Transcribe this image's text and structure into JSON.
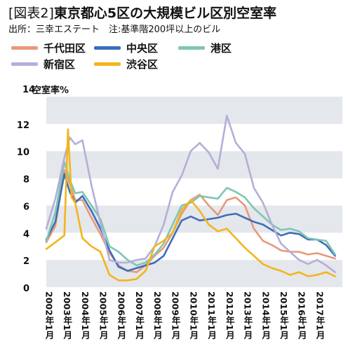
{
  "title_tag": "[図表2]",
  "title_text": "東京都心5区の大規模ビル区別空室率",
  "source": "出所：三幸エステート　注:基準階200坪以上のビル",
  "chart_data": {
    "type": "line",
    "ylabel": "空室率%",
    "ylim": [
      0,
      14
    ],
    "yticks": [
      0,
      2,
      4,
      6,
      8,
      10,
      12,
      14
    ],
    "xlim": [
      2002.0,
      2018.4
    ],
    "x_tick_labels": [
      "2002年1月",
      "2003年1月",
      "2004年1月",
      "2005年1月",
      "2006年1月",
      "2007年1月",
      "2008年1月",
      "2009年1月",
      "2010年1月",
      "2011年1月",
      "2012年1月",
      "2013年1月",
      "2014年1月",
      "2015年1月",
      "2016年1月",
      "2017年1月"
    ],
    "x_tick_values": [
      2002,
      2003,
      2004,
      2005,
      2006,
      2007,
      2008,
      2009,
      2010,
      2011,
      2012,
      2013,
      2014,
      2015,
      2016,
      2017
    ],
    "series": [
      {
        "name": "千代田区",
        "color": "#e8997a",
        "points": [
          [
            2002.0,
            3.3
          ],
          [
            2002.5,
            4.5
          ],
          [
            2003.0,
            8.6
          ],
          [
            2003.3,
            7.6
          ],
          [
            2003.6,
            6.4
          ],
          [
            2004.0,
            6.4
          ],
          [
            2004.5,
            5.1
          ],
          [
            2005.0,
            3.9
          ],
          [
            2005.5,
            2.5
          ],
          [
            2006.0,
            1.6
          ],
          [
            2006.5,
            1.2
          ],
          [
            2007.0,
            1.1
          ],
          [
            2007.5,
            1.6
          ],
          [
            2008.0,
            2.3
          ],
          [
            2008.5,
            2.9
          ],
          [
            2009.0,
            4.0
          ],
          [
            2009.5,
            5.4
          ],
          [
            2010.0,
            6.4
          ],
          [
            2010.5,
            6.8
          ],
          [
            2011.0,
            6.0
          ],
          [
            2011.5,
            5.3
          ],
          [
            2012.0,
            6.4
          ],
          [
            2012.5,
            6.6
          ],
          [
            2013.0,
            6.0
          ],
          [
            2013.5,
            4.3
          ],
          [
            2014.0,
            3.4
          ],
          [
            2014.5,
            3.1
          ],
          [
            2015.0,
            2.7
          ],
          [
            2015.5,
            2.6
          ],
          [
            2016.0,
            2.6
          ],
          [
            2016.5,
            2.4
          ],
          [
            2017.0,
            2.5
          ],
          [
            2017.5,
            2.3
          ],
          [
            2018.0,
            2.1
          ]
        ]
      },
      {
        "name": "中央区",
        "color": "#3b6fba",
        "points": [
          [
            2002.0,
            3.5
          ],
          [
            2002.5,
            4.8
          ],
          [
            2003.0,
            8.3
          ],
          [
            2003.3,
            7.0
          ],
          [
            2003.6,
            6.2
          ],
          [
            2004.0,
            6.7
          ],
          [
            2004.5,
            5.6
          ],
          [
            2005.0,
            4.3
          ],
          [
            2005.5,
            2.7
          ],
          [
            2006.0,
            1.5
          ],
          [
            2006.5,
            1.2
          ],
          [
            2007.0,
            1.4
          ],
          [
            2007.5,
            1.6
          ],
          [
            2008.0,
            1.8
          ],
          [
            2008.5,
            2.3
          ],
          [
            2009.0,
            3.6
          ],
          [
            2009.5,
            4.9
          ],
          [
            2010.0,
            5.2
          ],
          [
            2010.5,
            4.9
          ],
          [
            2011.0,
            5.0
          ],
          [
            2011.5,
            5.1
          ],
          [
            2012.0,
            5.3
          ],
          [
            2012.5,
            5.4
          ],
          [
            2013.0,
            5.1
          ],
          [
            2013.5,
            4.8
          ],
          [
            2014.0,
            4.6
          ],
          [
            2014.5,
            4.2
          ],
          [
            2015.0,
            3.8
          ],
          [
            2015.5,
            4.0
          ],
          [
            2016.0,
            3.9
          ],
          [
            2016.5,
            3.5
          ],
          [
            2017.0,
            3.5
          ],
          [
            2017.5,
            3.1
          ],
          [
            2018.0,
            2.3
          ]
        ]
      },
      {
        "name": "港区",
        "color": "#7fc6b4",
        "points": [
          [
            2002.0,
            3.4
          ],
          [
            2002.5,
            5.5
          ],
          [
            2003.0,
            9.2
          ],
          [
            2003.3,
            7.9
          ],
          [
            2003.6,
            6.9
          ],
          [
            2004.0,
            7.0
          ],
          [
            2004.5,
            6.0
          ],
          [
            2005.0,
            5.0
          ],
          [
            2005.5,
            3.0
          ],
          [
            2006.0,
            2.6
          ],
          [
            2006.5,
            2.0
          ],
          [
            2007.0,
            1.6
          ],
          [
            2007.5,
            1.8
          ],
          [
            2008.0,
            2.4
          ],
          [
            2008.5,
            3.2
          ],
          [
            2009.0,
            4.6
          ],
          [
            2009.5,
            6.0
          ],
          [
            2010.0,
            6.2
          ],
          [
            2010.5,
            6.7
          ],
          [
            2011.0,
            6.6
          ],
          [
            2011.5,
            6.5
          ],
          [
            2012.0,
            7.3
          ],
          [
            2012.5,
            7.0
          ],
          [
            2013.0,
            6.6
          ],
          [
            2013.5,
            5.8
          ],
          [
            2014.0,
            5.2
          ],
          [
            2014.5,
            4.6
          ],
          [
            2015.0,
            4.2
          ],
          [
            2015.5,
            4.3
          ],
          [
            2016.0,
            4.1
          ],
          [
            2016.5,
            3.6
          ],
          [
            2017.0,
            3.5
          ],
          [
            2017.5,
            3.4
          ],
          [
            2018.0,
            2.4
          ]
        ]
      },
      {
        "name": "新宿区",
        "color": "#b5aed8",
        "points": [
          [
            2002.0,
            4.3
          ],
          [
            2002.5,
            6.5
          ],
          [
            2003.0,
            9.5
          ],
          [
            2003.3,
            11.0
          ],
          [
            2003.6,
            10.5
          ],
          [
            2004.0,
            10.8
          ],
          [
            2004.5,
            7.5
          ],
          [
            2005.0,
            4.7
          ],
          [
            2005.5,
            2.0
          ],
          [
            2006.0,
            1.8
          ],
          [
            2006.5,
            1.8
          ],
          [
            2007.0,
            2.0
          ],
          [
            2007.5,
            2.1
          ],
          [
            2008.0,
            3.0
          ],
          [
            2008.5,
            4.6
          ],
          [
            2009.0,
            7.0
          ],
          [
            2009.5,
            8.2
          ],
          [
            2010.0,
            10.0
          ],
          [
            2010.5,
            10.6
          ],
          [
            2011.0,
            9.9
          ],
          [
            2011.5,
            8.7
          ],
          [
            2012.0,
            12.6
          ],
          [
            2012.5,
            10.6
          ],
          [
            2013.0,
            9.8
          ],
          [
            2013.5,
            7.3
          ],
          [
            2014.0,
            6.2
          ],
          [
            2014.5,
            4.6
          ],
          [
            2015.0,
            3.2
          ],
          [
            2015.5,
            2.6
          ],
          [
            2016.0,
            2.0
          ],
          [
            2016.5,
            1.7
          ],
          [
            2017.0,
            2.0
          ],
          [
            2017.5,
            1.6
          ],
          [
            2018.0,
            1.1
          ]
        ]
      },
      {
        "name": "渋谷区",
        "color": "#f2b51b",
        "points": [
          [
            2002.0,
            2.8
          ],
          [
            2002.5,
            3.3
          ],
          [
            2003.0,
            3.8
          ],
          [
            2003.2,
            11.6
          ],
          [
            2003.4,
            6.6
          ],
          [
            2003.6,
            6.2
          ],
          [
            2004.0,
            3.6
          ],
          [
            2004.5,
            3.0
          ],
          [
            2005.0,
            2.6
          ],
          [
            2005.5,
            0.9
          ],
          [
            2006.0,
            0.5
          ],
          [
            2006.5,
            0.5
          ],
          [
            2007.0,
            0.6
          ],
          [
            2007.5,
            1.2
          ],
          [
            2008.0,
            3.0
          ],
          [
            2008.5,
            3.4
          ],
          [
            2009.0,
            4.0
          ],
          [
            2009.5,
            5.7
          ],
          [
            2010.0,
            6.4
          ],
          [
            2010.5,
            5.6
          ],
          [
            2011.0,
            4.6
          ],
          [
            2011.5,
            4.1
          ],
          [
            2012.0,
            4.3
          ],
          [
            2012.5,
            3.6
          ],
          [
            2013.0,
            2.9
          ],
          [
            2013.5,
            2.3
          ],
          [
            2014.0,
            1.7
          ],
          [
            2014.5,
            1.4
          ],
          [
            2015.0,
            1.2
          ],
          [
            2015.5,
            0.9
          ],
          [
            2016.0,
            1.1
          ],
          [
            2016.5,
            0.8
          ],
          [
            2017.0,
            0.9
          ],
          [
            2017.5,
            1.1
          ],
          [
            2018.0,
            0.8
          ]
        ]
      }
    ]
  }
}
